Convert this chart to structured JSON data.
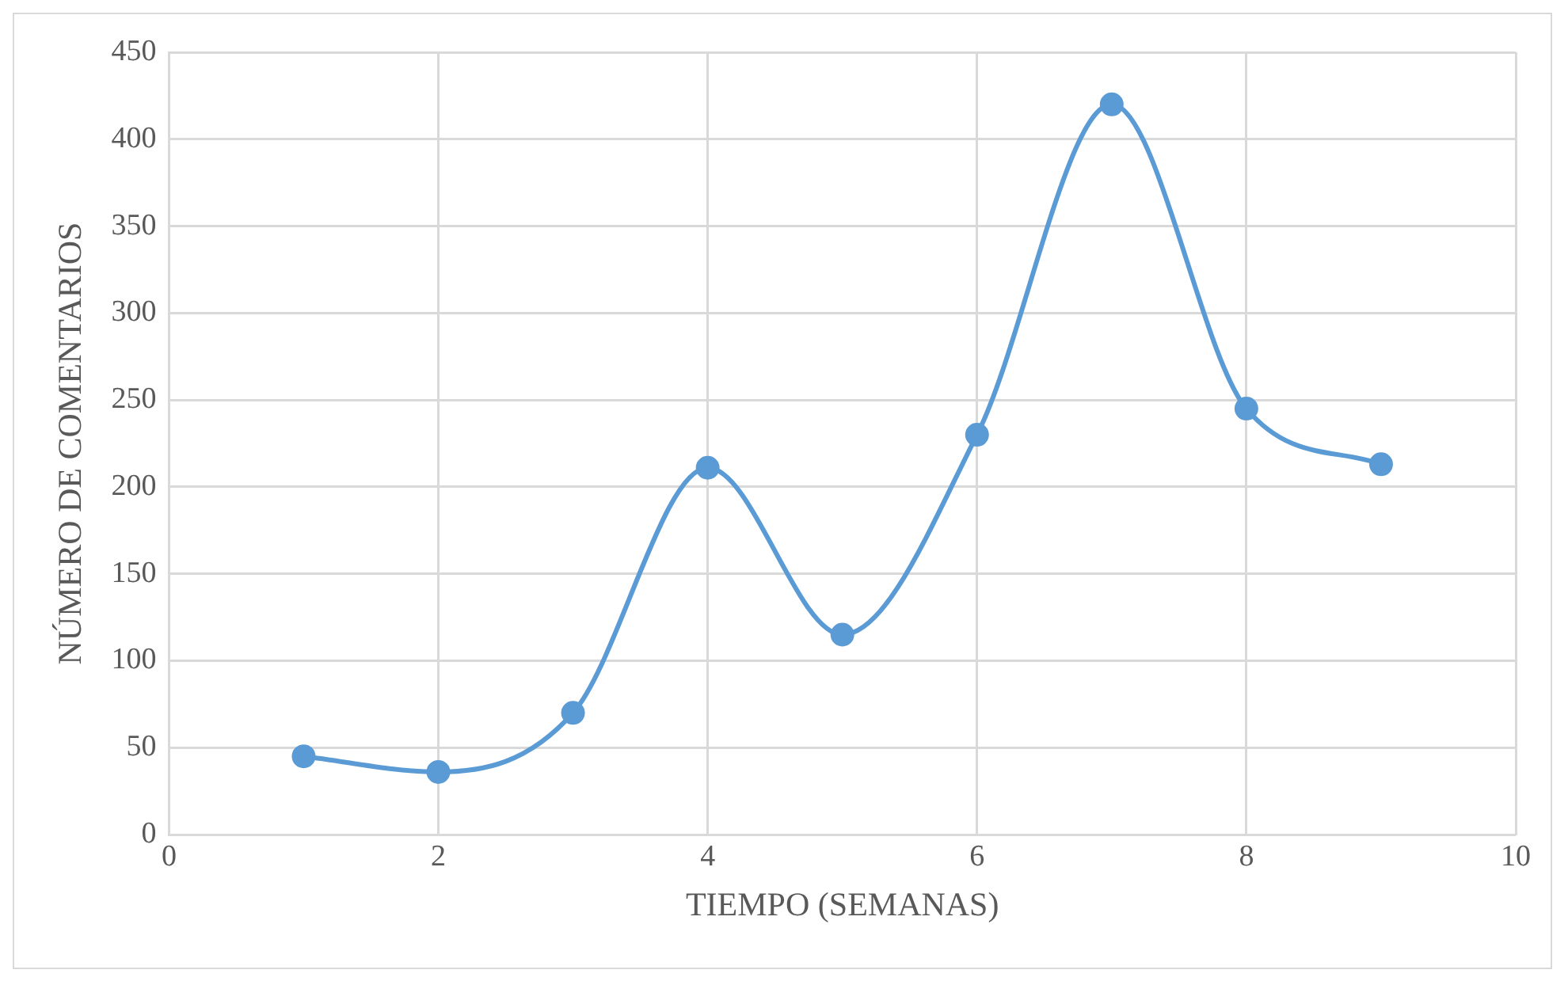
{
  "chart_data": {
    "type": "line",
    "xlabel": "TIEMPO (SEMANAS)",
    "ylabel": "NÚMERO DE COMENTARIOS",
    "x": [
      1,
      2,
      3,
      4,
      5,
      6,
      7,
      8,
      9
    ],
    "series": [
      {
        "color": "#5b9bd5",
        "values": [
          45,
          36,
          70,
          211,
          115,
          230,
          420,
          245,
          213
        ]
      }
    ],
    "xlim": [
      0,
      10
    ],
    "xticks": [
      0,
      2,
      4,
      6,
      8,
      10
    ],
    "ylim": [
      0,
      450
    ],
    "yticks": [
      0,
      50,
      100,
      150,
      200,
      250,
      300,
      350,
      400,
      450
    ],
    "grid": true,
    "legend": false,
    "marker": "circle",
    "line_style": "solid"
  }
}
